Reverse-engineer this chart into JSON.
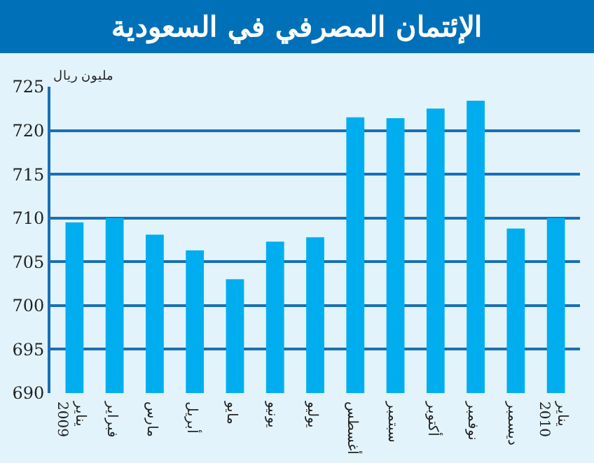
{
  "chart_data": {
    "type": "bar",
    "title": "الإئتمان المصرفي في السعودية",
    "ylabel": "مليون ريال",
    "categories": [
      "يناير\n2009",
      "فبراير",
      "مارس",
      "أبريل",
      "مايو",
      "يونيو",
      "يوليو",
      "أغسطس",
      "سبتمبر",
      "أكتوبر",
      "نوفمبر",
      "ديسمبر",
      "يناير\n2010"
    ],
    "values": [
      709.5,
      710,
      708.1,
      706.3,
      703,
      707.3,
      707.8,
      721.5,
      721.4,
      722.5,
      723.4,
      708.8,
      710
    ],
    "color": "#00aeef",
    "ylim": [
      690,
      725
    ],
    "yticks": [
      690,
      695,
      700,
      705,
      710,
      715,
      720,
      725
    ],
    "grid": "y"
  }
}
